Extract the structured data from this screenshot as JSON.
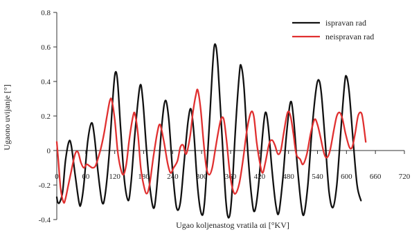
{
  "chart_data": {
    "type": "line",
    "title": "",
    "xlabel": "Ugao koljenastog vratila αi [°KV]",
    "ylabel": "Ugaono uvijanje [°]",
    "xlim": [
      0,
      720
    ],
    "ylim": [
      -0.4,
      0.8
    ],
    "x_ticks": [
      0,
      60,
      120,
      180,
      240,
      300,
      360,
      420,
      480,
      540,
      600,
      660,
      720
    ],
    "x_tick_labels": [
      "0",
      "60",
      "120",
      "180",
      "240",
      "300",
      "360",
      "420",
      "480",
      "540",
      "600",
      "660",
      "720"
    ],
    "y_ticks": [
      -0.4,
      -0.2,
      0,
      0.2,
      0.4,
      0.6,
      0.8
    ],
    "y_tick_labels": [
      "-0.4",
      "-0.2",
      "0",
      "0.2",
      "0.4",
      "0.6",
      "0.8"
    ],
    "grid": false,
    "legend_position": "top-right",
    "series": [
      {
        "name": "ispravan rad",
        "color": "#111111",
        "points": [
          [
            0,
            -0.27
          ],
          [
            2,
            -0.3
          ],
          [
            6,
            -0.3
          ],
          [
            12,
            -0.24
          ],
          [
            18,
            -0.06
          ],
          [
            25,
            0.05
          ],
          [
            30,
            0.03
          ],
          [
            38,
            -0.14
          ],
          [
            46,
            -0.3
          ],
          [
            50,
            -0.31
          ],
          [
            56,
            -0.2
          ],
          [
            64,
            0.05
          ],
          [
            72,
            0.16
          ],
          [
            78,
            0.08
          ],
          [
            86,
            -0.14
          ],
          [
            94,
            -0.3
          ],
          [
            100,
            -0.26
          ],
          [
            108,
            -0.04
          ],
          [
            116,
            0.3
          ],
          [
            121,
            0.45
          ],
          [
            126,
            0.4
          ],
          [
            132,
            0.14
          ],
          [
            140,
            -0.17
          ],
          [
            148,
            -0.29
          ],
          [
            154,
            -0.18
          ],
          [
            162,
            0.1
          ],
          [
            172,
            0.37
          ],
          [
            178,
            0.3
          ],
          [
            186,
            0.0
          ],
          [
            194,
            -0.24
          ],
          [
            202,
            -0.33
          ],
          [
            210,
            -0.12
          ],
          [
            218,
            0.16
          ],
          [
            225,
            0.29
          ],
          [
            232,
            0.18
          ],
          [
            240,
            -0.12
          ],
          [
            248,
            -0.33
          ],
          [
            256,
            -0.3
          ],
          [
            264,
            -0.06
          ],
          [
            272,
            0.17
          ],
          [
            278,
            0.24
          ],
          [
            284,
            0.1
          ],
          [
            292,
            -0.22
          ],
          [
            300,
            -0.37
          ],
          [
            306,
            -0.3
          ],
          [
            314,
            0.05
          ],
          [
            322,
            0.45
          ],
          [
            326,
            0.6
          ],
          [
            330,
            0.6
          ],
          [
            334,
            0.48
          ],
          [
            342,
            0.1
          ],
          [
            350,
            -0.28
          ],
          [
            356,
            -0.39
          ],
          [
            362,
            -0.28
          ],
          [
            370,
            0.12
          ],
          [
            378,
            0.44
          ],
          [
            382,
            0.49
          ],
          [
            388,
            0.36
          ],
          [
            396,
            -0.02
          ],
          [
            404,
            -0.28
          ],
          [
            410,
            -0.35
          ],
          [
            418,
            -0.2
          ],
          [
            426,
            0.08
          ],
          [
            432,
            0.22
          ],
          [
            438,
            0.14
          ],
          [
            446,
            -0.12
          ],
          [
            454,
            -0.32
          ],
          [
            460,
            -0.36
          ],
          [
            468,
            -0.17
          ],
          [
            476,
            0.1
          ],
          [
            484,
            0.28
          ],
          [
            490,
            0.2
          ],
          [
            498,
            -0.08
          ],
          [
            506,
            -0.31
          ],
          [
            512,
            -0.37
          ],
          [
            520,
            -0.2
          ],
          [
            528,
            0.1
          ],
          [
            536,
            0.33
          ],
          [
            542,
            0.41
          ],
          [
            548,
            0.33
          ],
          [
            556,
            0.05
          ],
          [
            564,
            -0.24
          ],
          [
            572,
            -0.33
          ],
          [
            580,
            -0.2
          ],
          [
            588,
            0.1
          ],
          [
            596,
            0.38
          ],
          [
            600,
            0.43
          ],
          [
            606,
            0.33
          ],
          [
            614,
            0.05
          ],
          [
            622,
            -0.2
          ],
          [
            630,
            -0.29
          ]
        ]
      },
      {
        "name": "neispravan rad",
        "color": "#e03030",
        "points": [
          [
            0,
            0.05
          ],
          [
            3,
            -0.05
          ],
          [
            8,
            -0.22
          ],
          [
            14,
            -0.3
          ],
          [
            18,
            -0.28
          ],
          [
            24,
            -0.2
          ],
          [
            30,
            -0.12
          ],
          [
            38,
            -0.02
          ],
          [
            44,
            -0.01
          ],
          [
            50,
            -0.07
          ],
          [
            56,
            -0.1
          ],
          [
            62,
            -0.08
          ],
          [
            68,
            -0.09
          ],
          [
            74,
            -0.1
          ],
          [
            80,
            -0.09
          ],
          [
            86,
            -0.04
          ],
          [
            92,
            0.02
          ],
          [
            98,
            0.1
          ],
          [
            104,
            0.2
          ],
          [
            110,
            0.29
          ],
          [
            114,
            0.29
          ],
          [
            120,
            0.18
          ],
          [
            126,
            0.0
          ],
          [
            132,
            -0.1
          ],
          [
            138,
            -0.14
          ],
          [
            144,
            -0.08
          ],
          [
            150,
            0.06
          ],
          [
            158,
            0.2
          ],
          [
            162,
            0.21
          ],
          [
            168,
            0.1
          ],
          [
            174,
            -0.1
          ],
          [
            180,
            -0.2
          ],
          [
            186,
            -0.25
          ],
          [
            192,
            -0.2
          ],
          [
            200,
            -0.04
          ],
          [
            208,
            0.1
          ],
          [
            214,
            0.15
          ],
          [
            222,
            0.05
          ],
          [
            230,
            -0.08
          ],
          [
            236,
            -0.13
          ],
          [
            242,
            -0.1
          ],
          [
            250,
            -0.06
          ],
          [
            256,
            0.02
          ],
          [
            262,
            0.03
          ],
          [
            268,
            -0.02
          ],
          [
            276,
            0.08
          ],
          [
            282,
            0.22
          ],
          [
            288,
            0.32
          ],
          [
            292,
            0.35
          ],
          [
            298,
            0.24
          ],
          [
            304,
            0.05
          ],
          [
            310,
            -0.1
          ],
          [
            316,
            -0.14
          ],
          [
            322,
            -0.1
          ],
          [
            328,
            0.0
          ],
          [
            334,
            0.1
          ],
          [
            340,
            0.18
          ],
          [
            346,
            0.18
          ],
          [
            352,
            0.05
          ],
          [
            358,
            -0.12
          ],
          [
            364,
            -0.22
          ],
          [
            370,
            -0.25
          ],
          [
            378,
            -0.19
          ],
          [
            386,
            -0.05
          ],
          [
            394,
            0.12
          ],
          [
            402,
            0.22
          ],
          [
            408,
            0.2
          ],
          [
            414,
            0.05
          ],
          [
            420,
            -0.06
          ],
          [
            426,
            -0.13
          ],
          [
            432,
            -0.07
          ],
          [
            440,
            0.04
          ],
          [
            446,
            0.06
          ],
          [
            452,
            0.03
          ],
          [
            458,
            -0.02
          ],
          [
            464,
            0.0
          ],
          [
            470,
            0.1
          ],
          [
            478,
            0.22
          ],
          [
            484,
            0.2
          ],
          [
            490,
            0.1
          ],
          [
            496,
            -0.02
          ],
          [
            504,
            -0.05
          ],
          [
            510,
            -0.08
          ],
          [
            518,
            -0.02
          ],
          [
            526,
            0.1
          ],
          [
            534,
            0.18
          ],
          [
            540,
            0.15
          ],
          [
            546,
            0.08
          ],
          [
            554,
            -0.02
          ],
          [
            560,
            -0.04
          ],
          [
            566,
            0.0
          ],
          [
            574,
            0.12
          ],
          [
            580,
            0.2
          ],
          [
            586,
            0.22
          ],
          [
            592,
            0.18
          ],
          [
            598,
            0.1
          ],
          [
            606,
            0.02
          ],
          [
            612,
            0.02
          ],
          [
            618,
            0.1
          ],
          [
            624,
            0.2
          ],
          [
            630,
            0.22
          ],
          [
            634,
            0.18
          ],
          [
            640,
            0.05
          ]
        ]
      }
    ]
  }
}
